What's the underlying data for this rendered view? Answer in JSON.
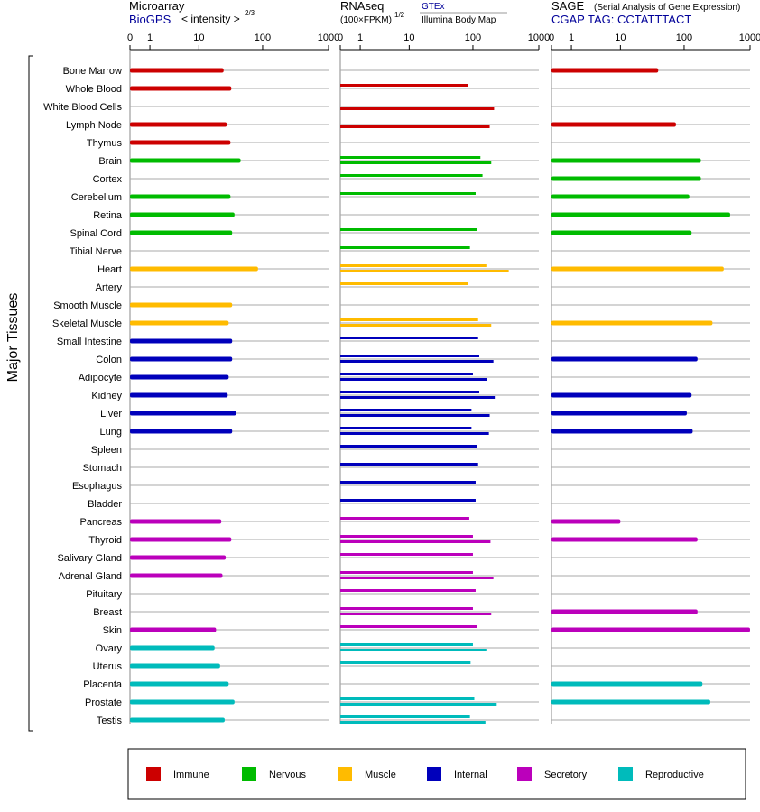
{
  "chart_data": {
    "type": "bar",
    "ylabel": "Major Tissues",
    "tissues": [
      "Bone Marrow",
      "Whole Blood",
      "White Blood Cells",
      "Lymph Node",
      "Thymus",
      "Brain",
      "Cortex",
      "Cerebellum",
      "Retina",
      "Spinal Cord",
      "Tibial Nerve",
      "Heart",
      "Artery",
      "Smooth Muscle",
      "Skeletal Muscle",
      "Small Intestine",
      "Colon",
      "Adipocyte",
      "Kidney",
      "Liver",
      "Lung",
      "Spleen",
      "Stomach",
      "Esophagus",
      "Bladder",
      "Pancreas",
      "Thyroid",
      "Salivary Gland",
      "Adrenal Gland",
      "Pituitary",
      "Breast",
      "Skin",
      "Ovary",
      "Uterus",
      "Placenta",
      "Prostate",
      "Testis"
    ],
    "groups": [
      "Immune",
      "Immune",
      "Immune",
      "Immune",
      "Immune",
      "Nervous",
      "Nervous",
      "Nervous",
      "Nervous",
      "Nervous",
      "Nervous",
      "Muscle",
      "Muscle",
      "Muscle",
      "Muscle",
      "Internal",
      "Internal",
      "Internal",
      "Internal",
      "Internal",
      "Internal",
      "Internal",
      "Internal",
      "Internal",
      "Internal",
      "Secretory",
      "Secretory",
      "Secretory",
      "Secretory",
      "Secretory",
      "Secretory",
      "Secretory",
      "Reproductive",
      "Reproductive",
      "Reproductive",
      "Reproductive",
      "Reproductive"
    ],
    "colors": {
      "Immune": "#cc0000",
      "Nervous": "#00bb00",
      "Muscle": "#ffbb00",
      "Internal": "#0000bb",
      "Secretory": "#bb00bb",
      "Reproductive": "#00bbbb"
    },
    "panels": [
      {
        "title": "Microarray",
        "subtitle_link": "BioGPS",
        "subtitle_text": "< intensity >",
        "subtitle_exp": "2/3",
        "ticks": [
          "0",
          "1",
          "10",
          "100",
          "1000"
        ],
        "scale": "log1p",
        "values": [
          25,
          33,
          null,
          28,
          32,
          46,
          null,
          32,
          37,
          34,
          null,
          85,
          null,
          34,
          30,
          34,
          34,
          30,
          29,
          39,
          34,
          null,
          null,
          null,
          null,
          23,
          33,
          27,
          24,
          null,
          null,
          19,
          18,
          22,
          30,
          37,
          26
        ]
      },
      {
        "title": "RNAseq",
        "subtitle_text": "(100×FPKM)",
        "subtitle_exp": "1/2",
        "gtex_label": "GTEx",
        "ibm_label": "Illumina Body Map",
        "ticks": [
          "0",
          "1",
          "10",
          "100",
          "1000"
        ],
        "scale": "log1p",
        "values_gtex": [
          null,
          85,
          null,
          null,
          null,
          130,
          140,
          110,
          null,
          115,
          90,
          160,
          85,
          null,
          120,
          120,
          125,
          100,
          125,
          95,
          95,
          115,
          120,
          110,
          110,
          88,
          100,
          100,
          100,
          110,
          100,
          115,
          100,
          92,
          null,
          105,
          90
        ],
        "values_ibm": [
          null,
          null,
          210,
          180,
          null,
          190,
          null,
          null,
          null,
          null,
          null,
          350,
          null,
          null,
          190,
          null,
          205,
          165,
          215,
          180,
          175,
          null,
          null,
          null,
          null,
          null,
          185,
          null,
          205,
          null,
          190,
          null,
          160,
          null,
          null,
          230,
          155
        ]
      },
      {
        "title": "SAGE",
        "title_note": "(Serial Analysis of Gene Expression)",
        "subtitle_text": "CGAP TAG: CCTATTTACT",
        "ticks": [
          "0",
          "1",
          "10",
          "100",
          "1000"
        ],
        "scale": "log1p",
        "values": [
          40,
          null,
          null,
          75,
          null,
          180,
          180,
          120,
          500,
          130,
          null,
          400,
          null,
          null,
          270,
          null,
          160,
          null,
          130,
          110,
          135,
          null,
          null,
          null,
          null,
          10,
          160,
          null,
          null,
          null,
          160,
          1000,
          null,
          null,
          190,
          250,
          null
        ]
      }
    ],
    "legend": [
      {
        "label": "Immune",
        "color": "#cc0000"
      },
      {
        "label": "Nervous",
        "color": "#00bb00"
      },
      {
        "label": "Muscle",
        "color": "#ffbb00"
      },
      {
        "label": "Internal",
        "color": "#0000bb"
      },
      {
        "label": "Secretory",
        "color": "#bb00bb"
      },
      {
        "label": "Reproductive",
        "color": "#00bbbb"
      }
    ]
  }
}
